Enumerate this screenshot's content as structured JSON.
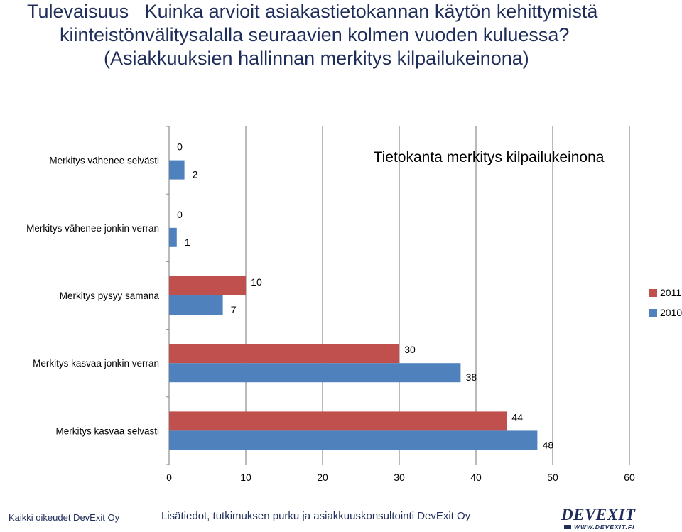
{
  "slide": {
    "title_line1": "Tulevaisuus   Kuinka arvioit asiakastietokannan käytön kehittymistä",
    "title_line2": "kiinteistönvälitysalalla seuraavien kolmen vuoden kuluessa?",
    "title_line3": "(Asiakkuuksien hallinnan merkitys kilpailukeinona)"
  },
  "chart_data": {
    "type": "bar",
    "orientation": "horizontal",
    "title": "Tietokanta merkitys kilpailukeinona",
    "categories": [
      "Merkitys vähenee selvästi",
      "Merkitys vähenee jonkin verran",
      "Merkitys pysyy samana",
      "Merkitys kasvaa jonkin verran",
      "Merkitys kasvaa selvästi"
    ],
    "series": [
      {
        "name": "2011",
        "color": "#c0504d",
        "values": [
          0,
          0,
          10,
          30,
          44
        ]
      },
      {
        "name": "2010",
        "color": "#4f81bd",
        "values": [
          2,
          1,
          7,
          38,
          48
        ]
      }
    ],
    "xlim": [
      0,
      60
    ],
    "xticks": [
      0,
      10,
      20,
      30,
      40,
      50,
      60
    ],
    "grid": true,
    "data_labels": true,
    "legend_position": "right"
  },
  "footer": {
    "left": "Kaikki oikeudet DevExit Oy",
    "center": "Lisätiedot, tutkimuksen purku ja asiakkuuskonsultointi DevExit Oy"
  },
  "logo": {
    "word": "DEVEXIT",
    "url": "WWW.DEVEXIT.FI"
  }
}
